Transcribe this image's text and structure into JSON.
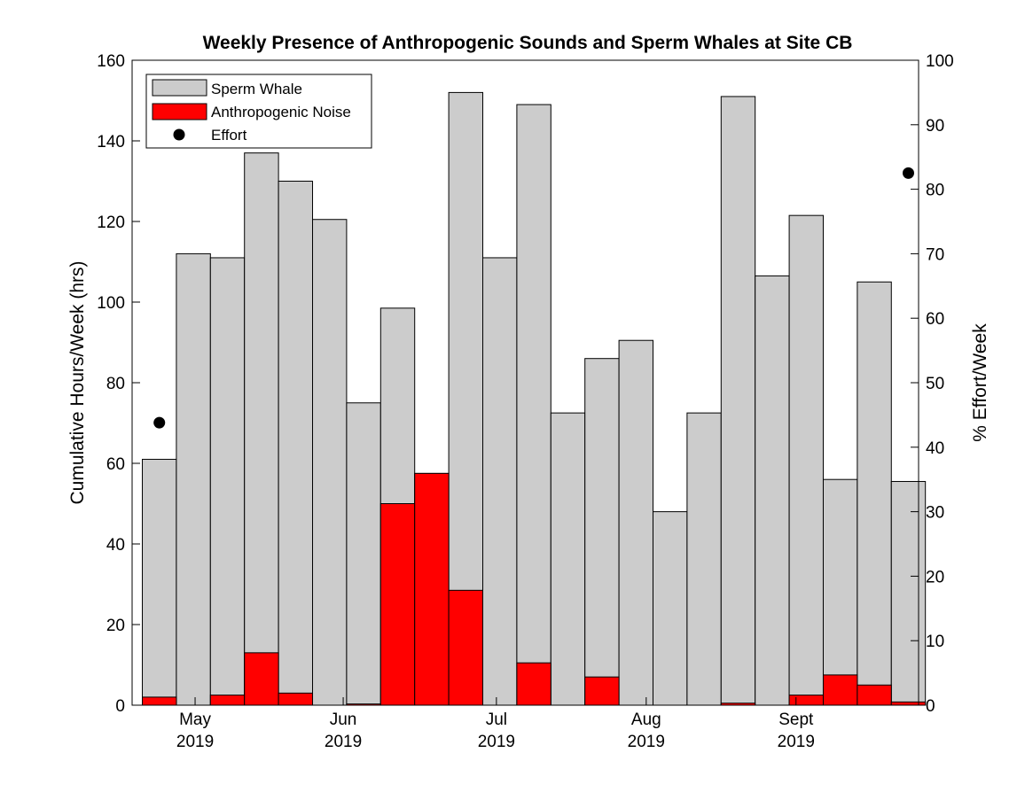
{
  "chart_data": {
    "type": "bar",
    "title": "Weekly Presence of Anthropogenic Sounds and Sperm Whales at Site CB",
    "ylabel_left": "Cumulative Hours/Week (hrs)",
    "ylabel_right": "% Effort/Week",
    "ylim_left": [
      0,
      160
    ],
    "ylim_right": [
      0,
      100
    ],
    "yticks_left": [
      "0",
      "20",
      "40",
      "60",
      "80",
      "100",
      "120",
      "140",
      "160"
    ],
    "yticks_right": [
      "0",
      "10",
      "20",
      "30",
      "40",
      "50",
      "60",
      "70",
      "80",
      "90",
      "100"
    ],
    "x_ticks": [
      {
        "month": "May",
        "year": "2019",
        "week_pos": 1.55
      },
      {
        "month": "Jun",
        "year": "2019",
        "week_pos": 5.9
      },
      {
        "month": "Jul",
        "year": "2019",
        "week_pos": 10.4
      },
      {
        "month": "Aug",
        "year": "2019",
        "week_pos": 14.8
      },
      {
        "month": "Sept",
        "year": "2019",
        "week_pos": 19.2
      }
    ],
    "x_range_weeks": [
      -0.8,
      22.3
    ],
    "weeks": 23,
    "series": [
      {
        "name": "Sperm Whale",
        "color": "#cccccc",
        "values": [
          61,
          112,
          111,
          137,
          130,
          120.5,
          75,
          98.5,
          57.5,
          152,
          111,
          149,
          72.5,
          86,
          90.5,
          48,
          72.5,
          151,
          106.5,
          121.5,
          56,
          105,
          55.5
        ]
      },
      {
        "name": "Anthropogenic Noise",
        "color": "#ff0000",
        "values": [
          2,
          0,
          2.5,
          13,
          3,
          0,
          0.3,
          50,
          57.5,
          28.5,
          0,
          10.5,
          0,
          7,
          0,
          0,
          0,
          0.5,
          0,
          2.5,
          7.5,
          5,
          0.8
        ]
      },
      {
        "name": "Effort",
        "axis": "right",
        "color": "#000000",
        "points": [
          {
            "week": 0.5,
            "value": 43.8
          },
          {
            "week": 22.5,
            "value": 82.5
          }
        ]
      }
    ],
    "legend": {
      "position": "top-left",
      "entries": [
        "Sperm Whale",
        "Anthropogenic Noise",
        "Effort"
      ]
    }
  }
}
